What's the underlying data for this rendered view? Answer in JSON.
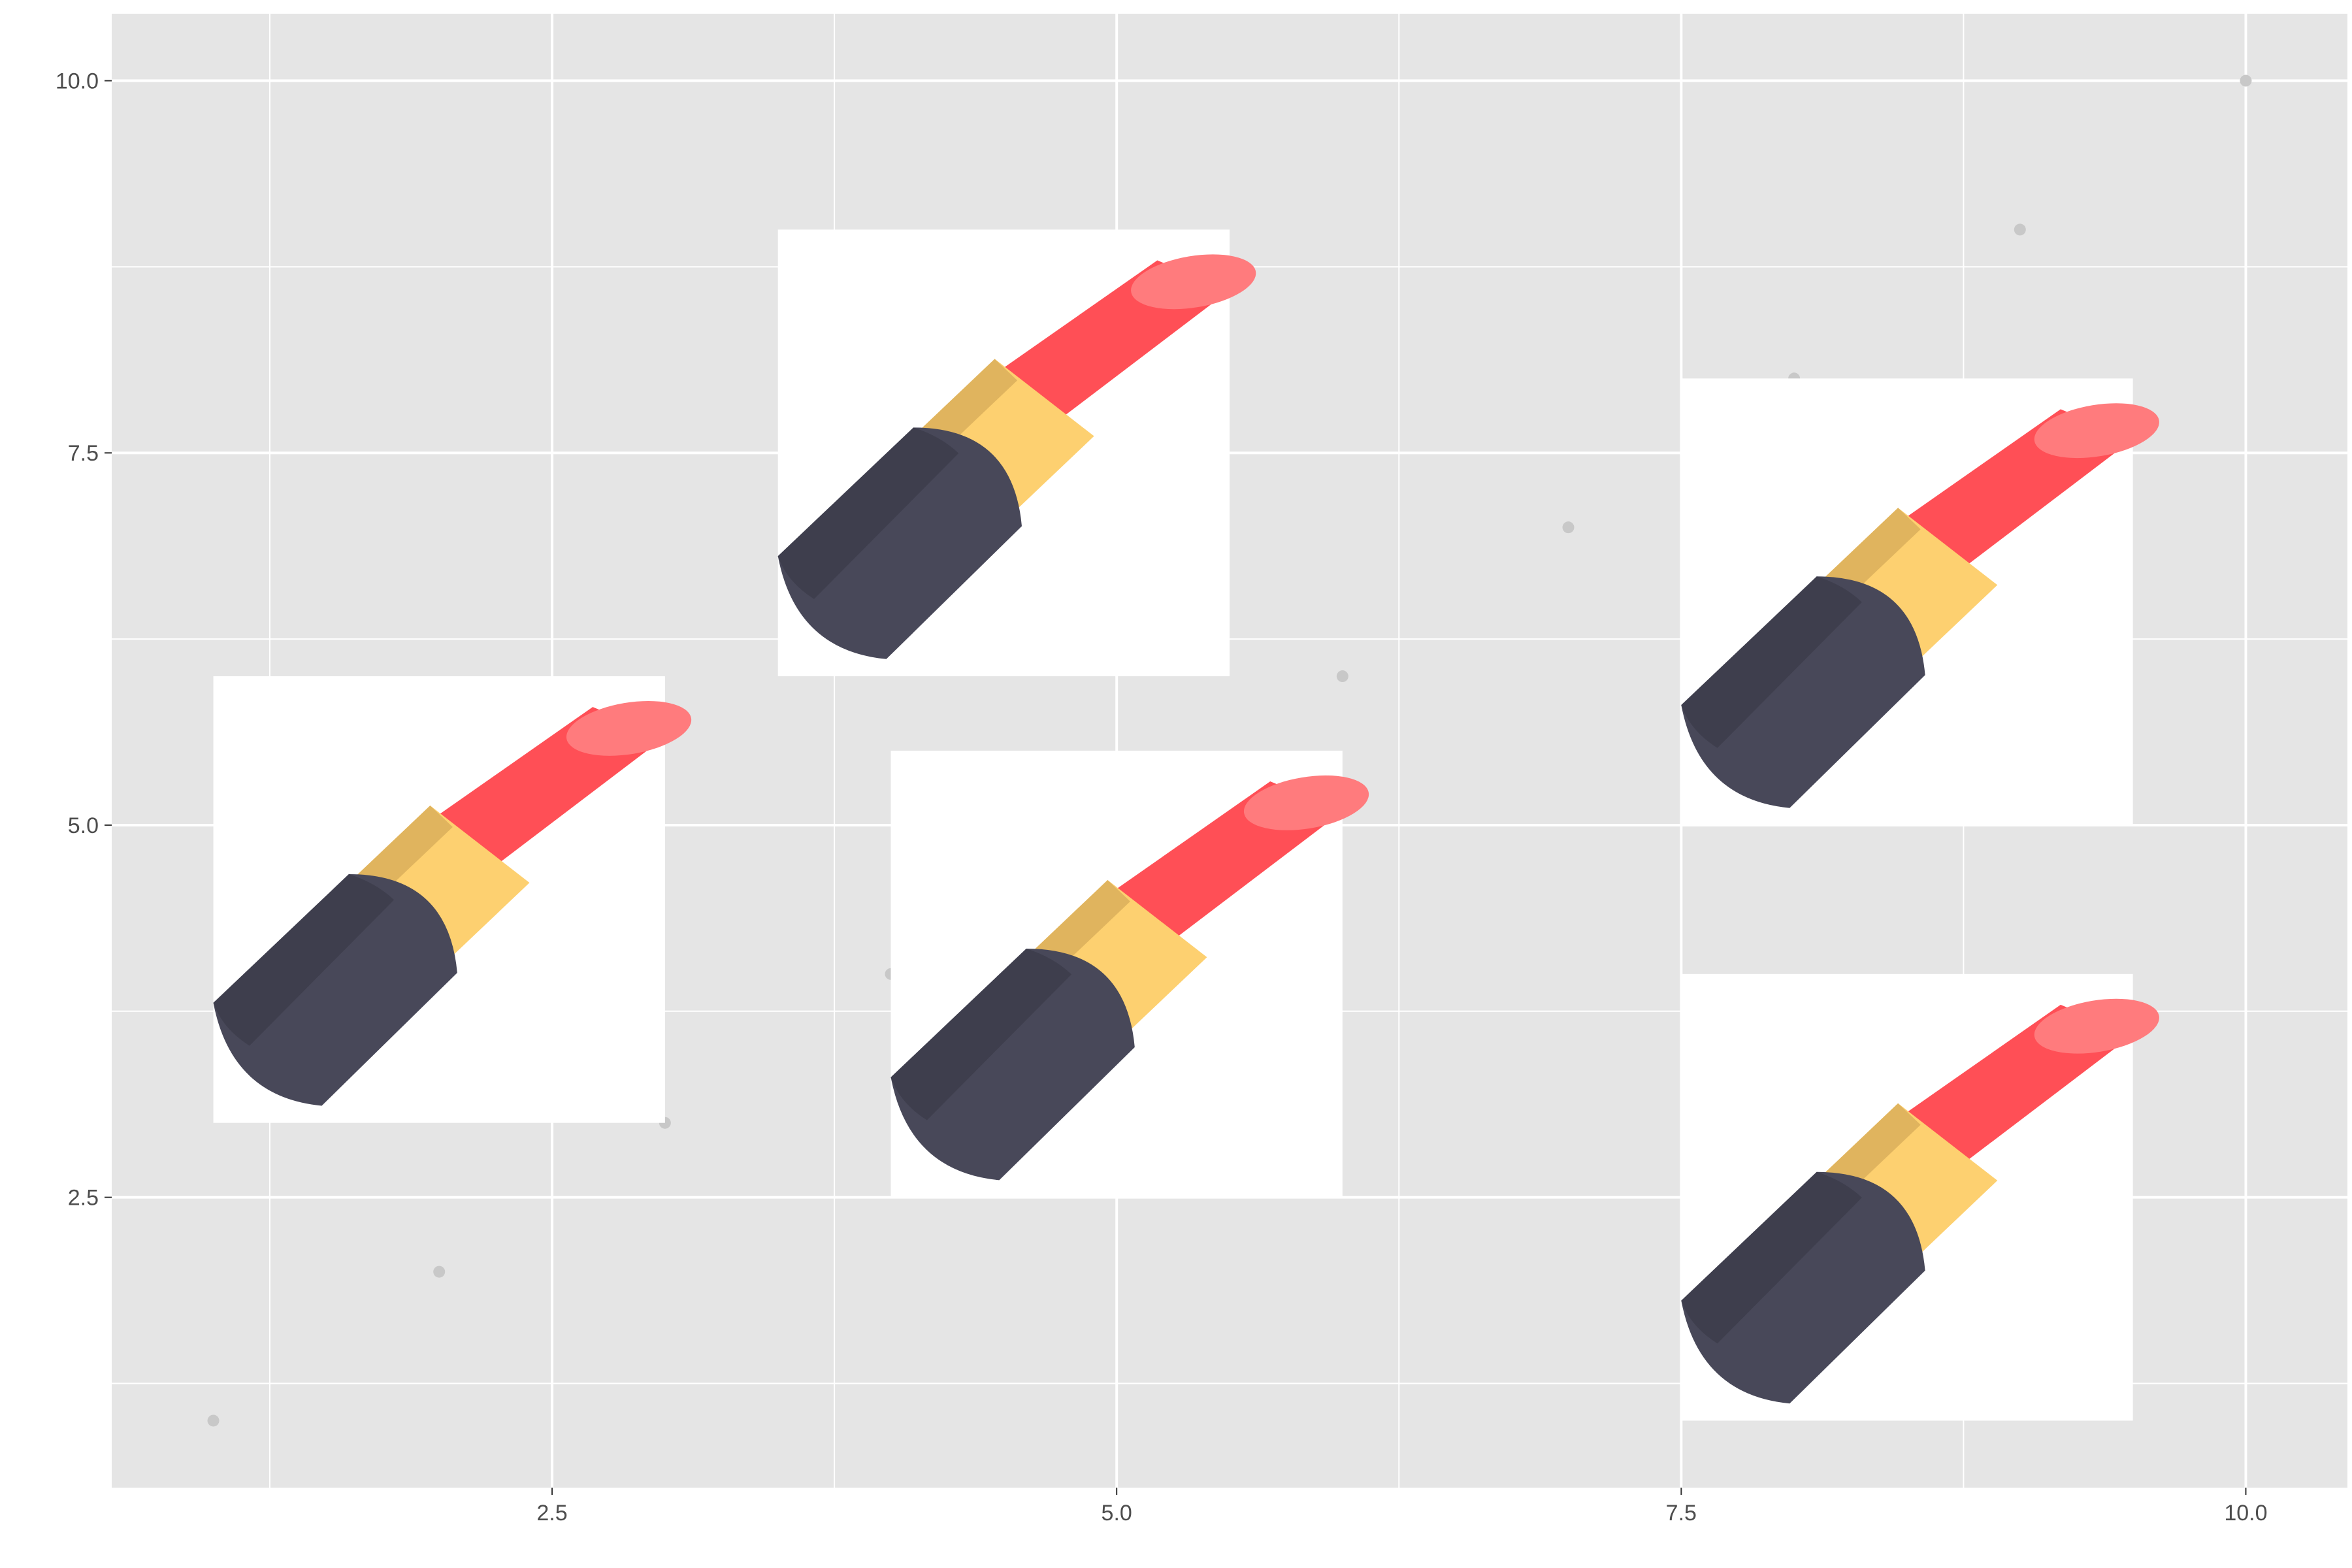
{
  "chart_data": {
    "type": "scatter",
    "title": "",
    "xlabel": "",
    "ylabel": "",
    "xlim": [
      0.55,
      10.45
    ],
    "ylim": [
      0.55,
      10.45
    ],
    "grid": true,
    "x_ticks": [
      {
        "value": 2.5,
        "label": "2.5"
      },
      {
        "value": 5.0,
        "label": "5.0"
      },
      {
        "value": 7.5,
        "label": "7.5"
      },
      {
        "value": 10.0,
        "label": "10.0"
      }
    ],
    "y_ticks": [
      {
        "value": 2.5,
        "label": "2.5"
      },
      {
        "value": 5.0,
        "label": "5.0"
      },
      {
        "value": 7.5,
        "label": "7.5"
      },
      {
        "value": 10.0,
        "label": "10.0"
      }
    ],
    "points": {
      "x": [
        1,
        2,
        3,
        4,
        5,
        6,
        7,
        8,
        9,
        10
      ],
      "y": [
        1,
        2,
        3,
        4,
        5,
        6,
        7,
        8,
        9,
        10
      ],
      "color": "#c8c8c8"
    },
    "images": [
      {
        "icon": "lipstick-icon",
        "xmin": 1.0,
        "xmax": 3.0,
        "ymin": 3.0,
        "ymax": 6.0
      },
      {
        "icon": "lipstick-icon",
        "xmin": 3.5,
        "xmax": 5.5,
        "ymin": 6.0,
        "ymax": 9.0
      },
      {
        "icon": "lipstick-icon",
        "xmin": 4.0,
        "xmax": 6.0,
        "ymin": 2.5,
        "ymax": 5.5
      },
      {
        "icon": "lipstick-icon",
        "xmin": 7.5,
        "xmax": 9.5,
        "ymin": 5.0,
        "ymax": 8.0
      },
      {
        "icon": "lipstick-icon",
        "xmin": 7.5,
        "xmax": 9.5,
        "ymin": 1.0,
        "ymax": 4.0
      }
    ],
    "colors": {
      "panel": "#e5e5e5",
      "grid": "#ffffff",
      "tick": "#333333",
      "lipstick_bullet": "#ff4f56",
      "lipstick_tip": "#ff7b7d",
      "lipstick_band": "#fdd070",
      "lipstick_band_shadow": "#e0b45e",
      "lipstick_case": "#484859",
      "lipstick_case_shadow": "#3e3e4d"
    }
  }
}
